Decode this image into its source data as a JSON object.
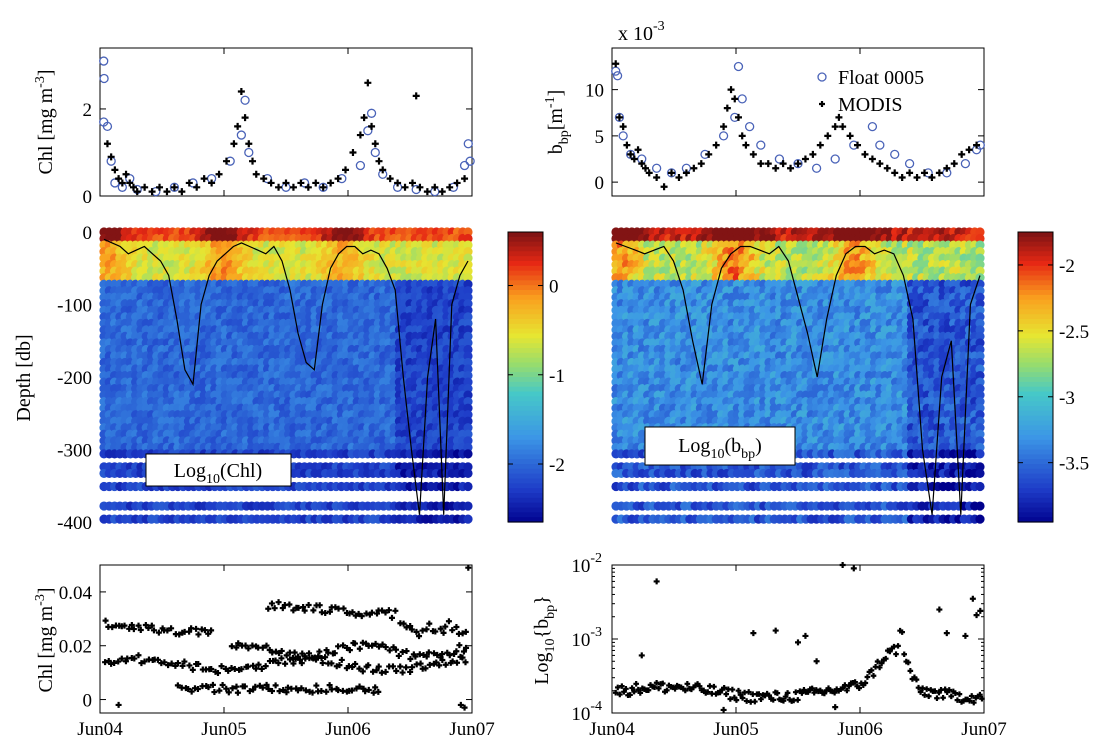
{
  "chart_data": [
    {
      "panel": "chl-surface",
      "type": "scatter",
      "ylabel_main": "Chl [mg m",
      "ylabel_exp": "-3",
      "ylabel_close": "]",
      "ylim": [
        0,
        3.4
      ],
      "yticks": [
        {
          "v": 0,
          "label": "0"
        },
        {
          "v": 2,
          "label": "2"
        }
      ],
      "series": [
        {
          "name": "Float 0005",
          "marker": "circle",
          "color": "#4a63b8",
          "points": [
            [
              1.0,
              3.1
            ],
            [
              1.1,
              2.7
            ],
            [
              1.0,
              1.7
            ],
            [
              2,
              1.6
            ],
            [
              3,
              0.8
            ],
            [
              4,
              0.3
            ],
            [
              6,
              0.2
            ],
            [
              8,
              0.4
            ],
            [
              10,
              0.15
            ],
            [
              15,
              0.1
            ],
            [
              20,
              0.2
            ],
            [
              25,
              0.3
            ],
            [
              30,
              0.4
            ],
            [
              35,
              0.8
            ],
            [
              38,
              1.4
            ],
            [
              39,
              2.2
            ],
            [
              40,
              1.0
            ],
            [
              45,
              0.4
            ],
            [
              50,
              0.2
            ],
            [
              55,
              0.3
            ],
            [
              60,
              0.2
            ],
            [
              65,
              0.4
            ],
            [
              70,
              0.7
            ],
            [
              72,
              1.5
            ],
            [
              73,
              1.9
            ],
            [
              74,
              1.0
            ],
            [
              76,
              0.5
            ],
            [
              80,
              0.2
            ],
            [
              85,
              0.15
            ],
            [
              90,
              0.1
            ],
            [
              95,
              0.2
            ],
            [
              98,
              0.7
            ],
            [
              99,
              1.2
            ],
            [
              99.5,
              0.8
            ]
          ]
        },
        {
          "name": "MODIS",
          "marker": "plus",
          "color": "#000000",
          "points": [
            [
              2,
              1.2
            ],
            [
              3,
              0.9
            ],
            [
              4,
              0.6
            ],
            [
              5,
              0.4
            ],
            [
              6,
              0.3
            ],
            [
              7,
              0.5
            ],
            [
              8,
              0.3
            ],
            [
              9,
              0.2
            ],
            [
              10,
              0.1
            ],
            [
              12,
              0.2
            ],
            [
              14,
              0.1
            ],
            [
              16,
              0.2
            ],
            [
              18,
              0.1
            ],
            [
              20,
              0.2
            ],
            [
              22,
              0.1
            ],
            [
              24,
              0.3
            ],
            [
              26,
              0.2
            ],
            [
              28,
              0.4
            ],
            [
              30,
              0.3
            ],
            [
              32,
              0.5
            ],
            [
              34,
              0.8
            ],
            [
              36,
              1.2
            ],
            [
              37,
              1.6
            ],
            [
              38,
              2.4
            ],
            [
              39,
              1.8
            ],
            [
              40,
              1.2
            ],
            [
              41,
              0.8
            ],
            [
              42,
              0.5
            ],
            [
              44,
              0.4
            ],
            [
              46,
              0.3
            ],
            [
              48,
              0.2
            ],
            [
              50,
              0.3
            ],
            [
              52,
              0.2
            ],
            [
              54,
              0.3
            ],
            [
              56,
              0.2
            ],
            [
              58,
              0.3
            ],
            [
              60,
              0.2
            ],
            [
              62,
              0.3
            ],
            [
              64,
              0.4
            ],
            [
              66,
              0.6
            ],
            [
              68,
              1.0
            ],
            [
              70,
              1.4
            ],
            [
              71,
              1.8
            ],
            [
              72,
              2.6
            ],
            [
              73,
              1.6
            ],
            [
              74,
              1.2
            ],
            [
              75,
              0.8
            ],
            [
              76,
              0.6
            ],
            [
              78,
              0.4
            ],
            [
              80,
              0.3
            ],
            [
              82,
              0.2
            ],
            [
              84,
              0.3
            ],
            [
              86,
              0.2
            ],
            [
              88,
              0.1
            ],
            [
              90,
              0.2
            ],
            [
              92,
              0.1
            ],
            [
              94,
              0.2
            ],
            [
              96,
              0.3
            ],
            [
              98,
              0.4
            ],
            [
              85,
              2.3
            ]
          ]
        }
      ]
    },
    {
      "panel": "bbp-surface",
      "type": "scatter",
      "ylabel_main": "b",
      "ylabel_sub": "bp",
      "ylabel_unit": "[m",
      "ylabel_exp": "-1",
      "ylabel_close": "]",
      "scale_prefix": "x 10",
      "scale_exp": "-3",
      "ylim": [
        -1.5,
        14.5
      ],
      "yticks": [
        {
          "v": 0,
          "label": "0"
        },
        {
          "v": 5,
          "label": "5"
        },
        {
          "v": 10,
          "label": "10"
        }
      ],
      "legend": [
        {
          "label": "Float 0005",
          "marker": "circle"
        },
        {
          "label": "MODIS",
          "marker": "plus"
        }
      ],
      "series": [
        {
          "name": "Float 0005",
          "marker": "circle",
          "color": "#4a63b8",
          "points": [
            [
              1,
              12
            ],
            [
              1.5,
              11.5
            ],
            [
              2,
              7
            ],
            [
              3,
              5
            ],
            [
              5,
              3
            ],
            [
              8,
              2.5
            ],
            [
              12,
              1.5
            ],
            [
              16,
              1
            ],
            [
              20,
              1.5
            ],
            [
              25,
              3
            ],
            [
              30,
              5
            ],
            [
              33,
              7
            ],
            [
              34,
              12.5
            ],
            [
              35,
              9
            ],
            [
              37,
              6
            ],
            [
              40,
              4
            ],
            [
              45,
              2.5
            ],
            [
              50,
              2
            ],
            [
              55,
              1.5
            ],
            [
              60,
              2.5
            ],
            [
              65,
              4
            ],
            [
              70,
              6
            ],
            [
              72,
              4
            ],
            [
              76,
              3
            ],
            [
              80,
              2
            ],
            [
              85,
              1
            ],
            [
              90,
              1
            ],
            [
              95,
              2
            ],
            [
              98,
              3.5
            ],
            [
              99,
              4
            ]
          ]
        },
        {
          "name": "MODIS",
          "marker": "plus",
          "color": "#000000",
          "points": [
            [
              1,
              12.8
            ],
            [
              2,
              7
            ],
            [
              3,
              6
            ],
            [
              4,
              4
            ],
            [
              5,
              3
            ],
            [
              6,
              2.5
            ],
            [
              7,
              3.5
            ],
            [
              8,
              2
            ],
            [
              9,
              1.5
            ],
            [
              10,
              1
            ],
            [
              12,
              0.5
            ],
            [
              14,
              -0.5
            ],
            [
              16,
              1
            ],
            [
              18,
              0.5
            ],
            [
              20,
              1
            ],
            [
              22,
              1.5
            ],
            [
              24,
              2
            ],
            [
              26,
              3
            ],
            [
              28,
              4
            ],
            [
              30,
              6
            ],
            [
              31,
              8
            ],
            [
              32,
              10
            ],
            [
              33,
              9
            ],
            [
              34,
              7
            ],
            [
              35,
              5
            ],
            [
              36,
              4
            ],
            [
              38,
              3
            ],
            [
              40,
              2
            ],
            [
              42,
              2
            ],
            [
              44,
              1.5
            ],
            [
              46,
              2
            ],
            [
              48,
              1.5
            ],
            [
              50,
              2
            ],
            [
              52,
              2.5
            ],
            [
              54,
              3
            ],
            [
              56,
              4
            ],
            [
              58,
              5
            ],
            [
              60,
              6
            ],
            [
              61,
              7
            ],
            [
              62,
              6
            ],
            [
              64,
              5
            ],
            [
              66,
              4
            ],
            [
              68,
              3
            ],
            [
              70,
              2.5
            ],
            [
              72,
              2
            ],
            [
              74,
              1.5
            ],
            [
              76,
              1
            ],
            [
              78,
              0.5
            ],
            [
              80,
              1
            ],
            [
              82,
              0.5
            ],
            [
              84,
              1
            ],
            [
              86,
              0.5
            ],
            [
              88,
              1
            ],
            [
              90,
              1.5
            ],
            [
              92,
              2
            ],
            [
              94,
              3
            ],
            [
              96,
              3.5
            ],
            [
              98,
              4
            ]
          ]
        }
      ]
    },
    {
      "panel": "chl-profile",
      "type": "heatmap",
      "ylabel": "Depth [db]",
      "ylim": [
        -400,
        0
      ],
      "yticks": [
        {
          "v": 0,
          "label": "0"
        },
        {
          "v": -100,
          "label": "-100"
        },
        {
          "v": -200,
          "label": "-200"
        },
        {
          "v": -300,
          "label": "-300"
        },
        {
          "v": -400,
          "label": "-400"
        }
      ],
      "annotation": {
        "main": "Log",
        "sub": "10",
        "tail": "(Chl)"
      },
      "colorbar": {
        "clim": [
          -2.65,
          0.6
        ],
        "ticks": [
          {
            "v": 0,
            "label": "0"
          },
          {
            "v": -1,
            "label": "-1"
          },
          {
            "v": -2,
            "label": "-2"
          }
        ]
      },
      "mld_db": [
        -10,
        -15,
        -20,
        -30,
        -25,
        -20,
        -30,
        -40,
        -60,
        -120,
        -190,
        -210,
        -100,
        -60,
        -40,
        -30,
        -20,
        -15,
        -20,
        -25,
        -30,
        -20,
        -40,
        -80,
        -140,
        -180,
        -190,
        -100,
        -50,
        -30,
        -20,
        -20,
        -30,
        -25,
        -30,
        -50,
        -80,
        -200,
        -300,
        -390,
        -200,
        -120,
        -390,
        -100,
        -60,
        -40
      ]
    },
    {
      "panel": "bbp-profile",
      "type": "heatmap",
      "annotation": {
        "main": "Log",
        "sub": "10",
        "tail": "(b",
        "sub2": "bp",
        "close": ")"
      },
      "colorbar": {
        "clim": [
          -3.95,
          -1.75
        ],
        "ticks": [
          {
            "v": -2,
            "label": "-2"
          },
          {
            "v": -2.5,
            "label": "-2.5"
          },
          {
            "v": -3,
            "label": "-3"
          },
          {
            "v": -3.5,
            "label": "-3.5"
          }
        ]
      },
      "mld_db": [
        -15,
        -20,
        -25,
        -30,
        -25,
        -20,
        -40,
        -80,
        -150,
        -210,
        -100,
        -50,
        -30,
        -20,
        -20,
        -25,
        -30,
        -20,
        -40,
        -90,
        -140,
        -200,
        -120,
        -60,
        -30,
        -20,
        -20,
        -30,
        -25,
        -30,
        -60,
        -120,
        -300,
        -390,
        -200,
        -150,
        -390,
        -100,
        -60
      ]
    },
    {
      "panel": "chl-deep",
      "type": "scatter",
      "ylabel_main": "Chl [mg m",
      "ylabel_exp": "-3",
      "ylabel_close": "]",
      "ylim": [
        -0.005,
        0.05
      ],
      "yticks": [
        {
          "v": 0,
          "label": "0"
        },
        {
          "v": 0.02,
          "label": "0.02"
        },
        {
          "v": 0.04,
          "label": "0.04"
        }
      ],
      "xticks": [
        "Jun04",
        "Jun05",
        "Jun06",
        "Jun07"
      ],
      "bands": [
        0.028,
        0.013,
        0.004,
        0.018,
        0.035
      ],
      "outliers": [
        [
          99,
          0.049
        ],
        [
          98,
          -0.003
        ],
        [
          97,
          -0.002
        ],
        [
          5,
          -0.002
        ]
      ]
    },
    {
      "panel": "bbp-deep",
      "type": "scatter",
      "yscale": "log",
      "ylabel_main": "Log",
      "ylabel_sub": "10",
      "ylabel_tail": "{b",
      "ylabel_sub2": "bp",
      "ylabel_close": "}",
      "ylim": [
        0.0001,
        0.01
      ],
      "yticks": [
        {
          "v": -4,
          "label": "10",
          "exp": "-4"
        },
        {
          "v": -3,
          "label": "10",
          "exp": "-3"
        },
        {
          "v": -2,
          "label": "10",
          "exp": "-2"
        }
      ],
      "xticks": [
        "Jun04",
        "Jun05",
        "Jun06",
        "Jun07"
      ],
      "outliers": [
        [
          12,
          0.006
        ],
        [
          38,
          0.0012
        ],
        [
          44,
          0.0013
        ],
        [
          50,
          0.0009
        ],
        [
          52,
          0.0011
        ],
        [
          55,
          0.0005
        ],
        [
          62,
          0.01
        ],
        [
          65,
          0.009
        ],
        [
          88,
          0.0025
        ],
        [
          90,
          0.0012
        ],
        [
          95,
          0.0011
        ],
        [
          97,
          0.0035
        ],
        [
          98,
          0.0021
        ],
        [
          99,
          0.0024
        ],
        [
          8,
          0.0006
        ],
        [
          30,
          0.00011
        ],
        [
          60,
          0.00012
        ]
      ]
    }
  ]
}
